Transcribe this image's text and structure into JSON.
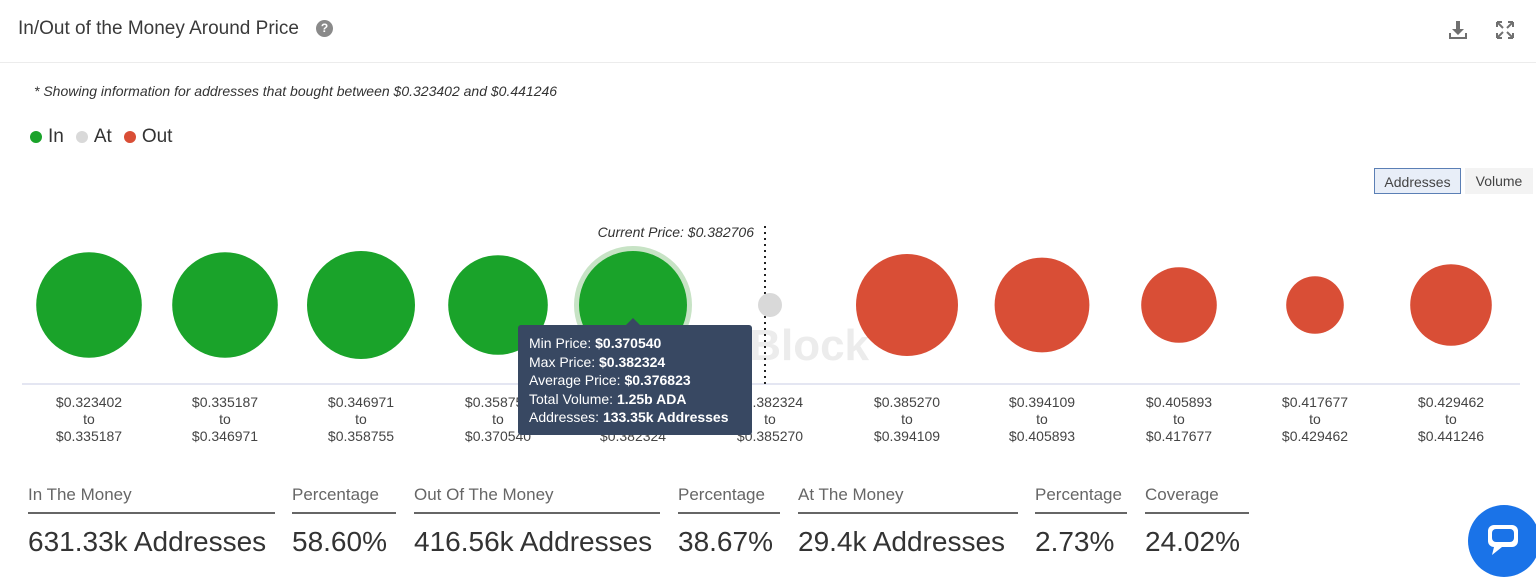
{
  "header": {
    "title": "In/Out of the Money Around Price",
    "help_icon": "?"
  },
  "note": "* Showing information for addresses that bought between $0.323402 and $0.441246",
  "legend": [
    {
      "label": "In",
      "color": "#1aa32a"
    },
    {
      "label": "At",
      "color": "#d9d9d9"
    },
    {
      "label": "Out",
      "color": "#d94e36"
    }
  ],
  "toggle": {
    "addresses": "Addresses",
    "volume": "Volume",
    "active": "Addresses"
  },
  "chart_data": {
    "type": "scatter",
    "title": "In/Out of the Money Around Price",
    "current_price_label": "Current Price: $0.382706",
    "current_price": 0.382706,
    "watermark": "TheBlock",
    "buckets": [
      {
        "from": "$0.323402",
        "to": "$0.335187",
        "status": "In",
        "size": 0.88
      },
      {
        "from": "$0.335187",
        "to": "$0.346971",
        "status": "In",
        "size": 0.88
      },
      {
        "from": "$0.346971",
        "to": "$0.358755",
        "status": "In",
        "size": 0.9
      },
      {
        "from": "$0.358755",
        "to": "$0.370540",
        "status": "In",
        "size": 0.83
      },
      {
        "from": "$0.370540",
        "to": "$0.382324",
        "status": "In",
        "size": 0.9,
        "highlighted": true
      },
      {
        "from": "$0.382324",
        "to": "$0.385270",
        "status": "At",
        "size": 0.2
      },
      {
        "from": "$0.385270",
        "to": "$0.394109",
        "status": "Out",
        "size": 0.85
      },
      {
        "from": "$0.394109",
        "to": "$0.405893",
        "status": "Out",
        "size": 0.79
      },
      {
        "from": "$0.405893",
        "to": "$0.417677",
        "status": "Out",
        "size": 0.63
      },
      {
        "from": "$0.417677",
        "to": "$0.429462",
        "status": "Out",
        "size": 0.48
      },
      {
        "from": "$0.429462",
        "to": "$0.441246",
        "status": "Out",
        "size": 0.68
      }
    ],
    "to_word": "to"
  },
  "tooltip": {
    "min_label": "Min Price: ",
    "min_value": "$0.370540",
    "max_label": "Max Price: ",
    "max_value": "$0.382324",
    "avg_label": "Average Price: ",
    "avg_value": "$0.376823",
    "vol_label": "Total Volume: ",
    "vol_value": "1.25b ADA",
    "addr_label": "Addresses: ",
    "addr_value": "133.35k Addresses"
  },
  "stats": [
    {
      "label": "In The Money",
      "value": "631.33k Addresses",
      "color": "#1aa32a"
    },
    {
      "label": "Percentage",
      "value": "58.60%",
      "color": "#1aa32a"
    },
    {
      "label": "Out Of The Money",
      "value": "416.56k Addresses",
      "color": "#d94e36"
    },
    {
      "label": "Percentage",
      "value": "38.67%",
      "color": "#d94e36"
    },
    {
      "label": "At The Money",
      "value": "29.4k Addresses",
      "color": "#d9d9d9"
    },
    {
      "label": "Percentage",
      "value": "2.73%",
      "color": "#d9d9d9"
    },
    {
      "label": "Coverage",
      "value": "24.02%",
      "color": "#2a3fc4"
    }
  ]
}
